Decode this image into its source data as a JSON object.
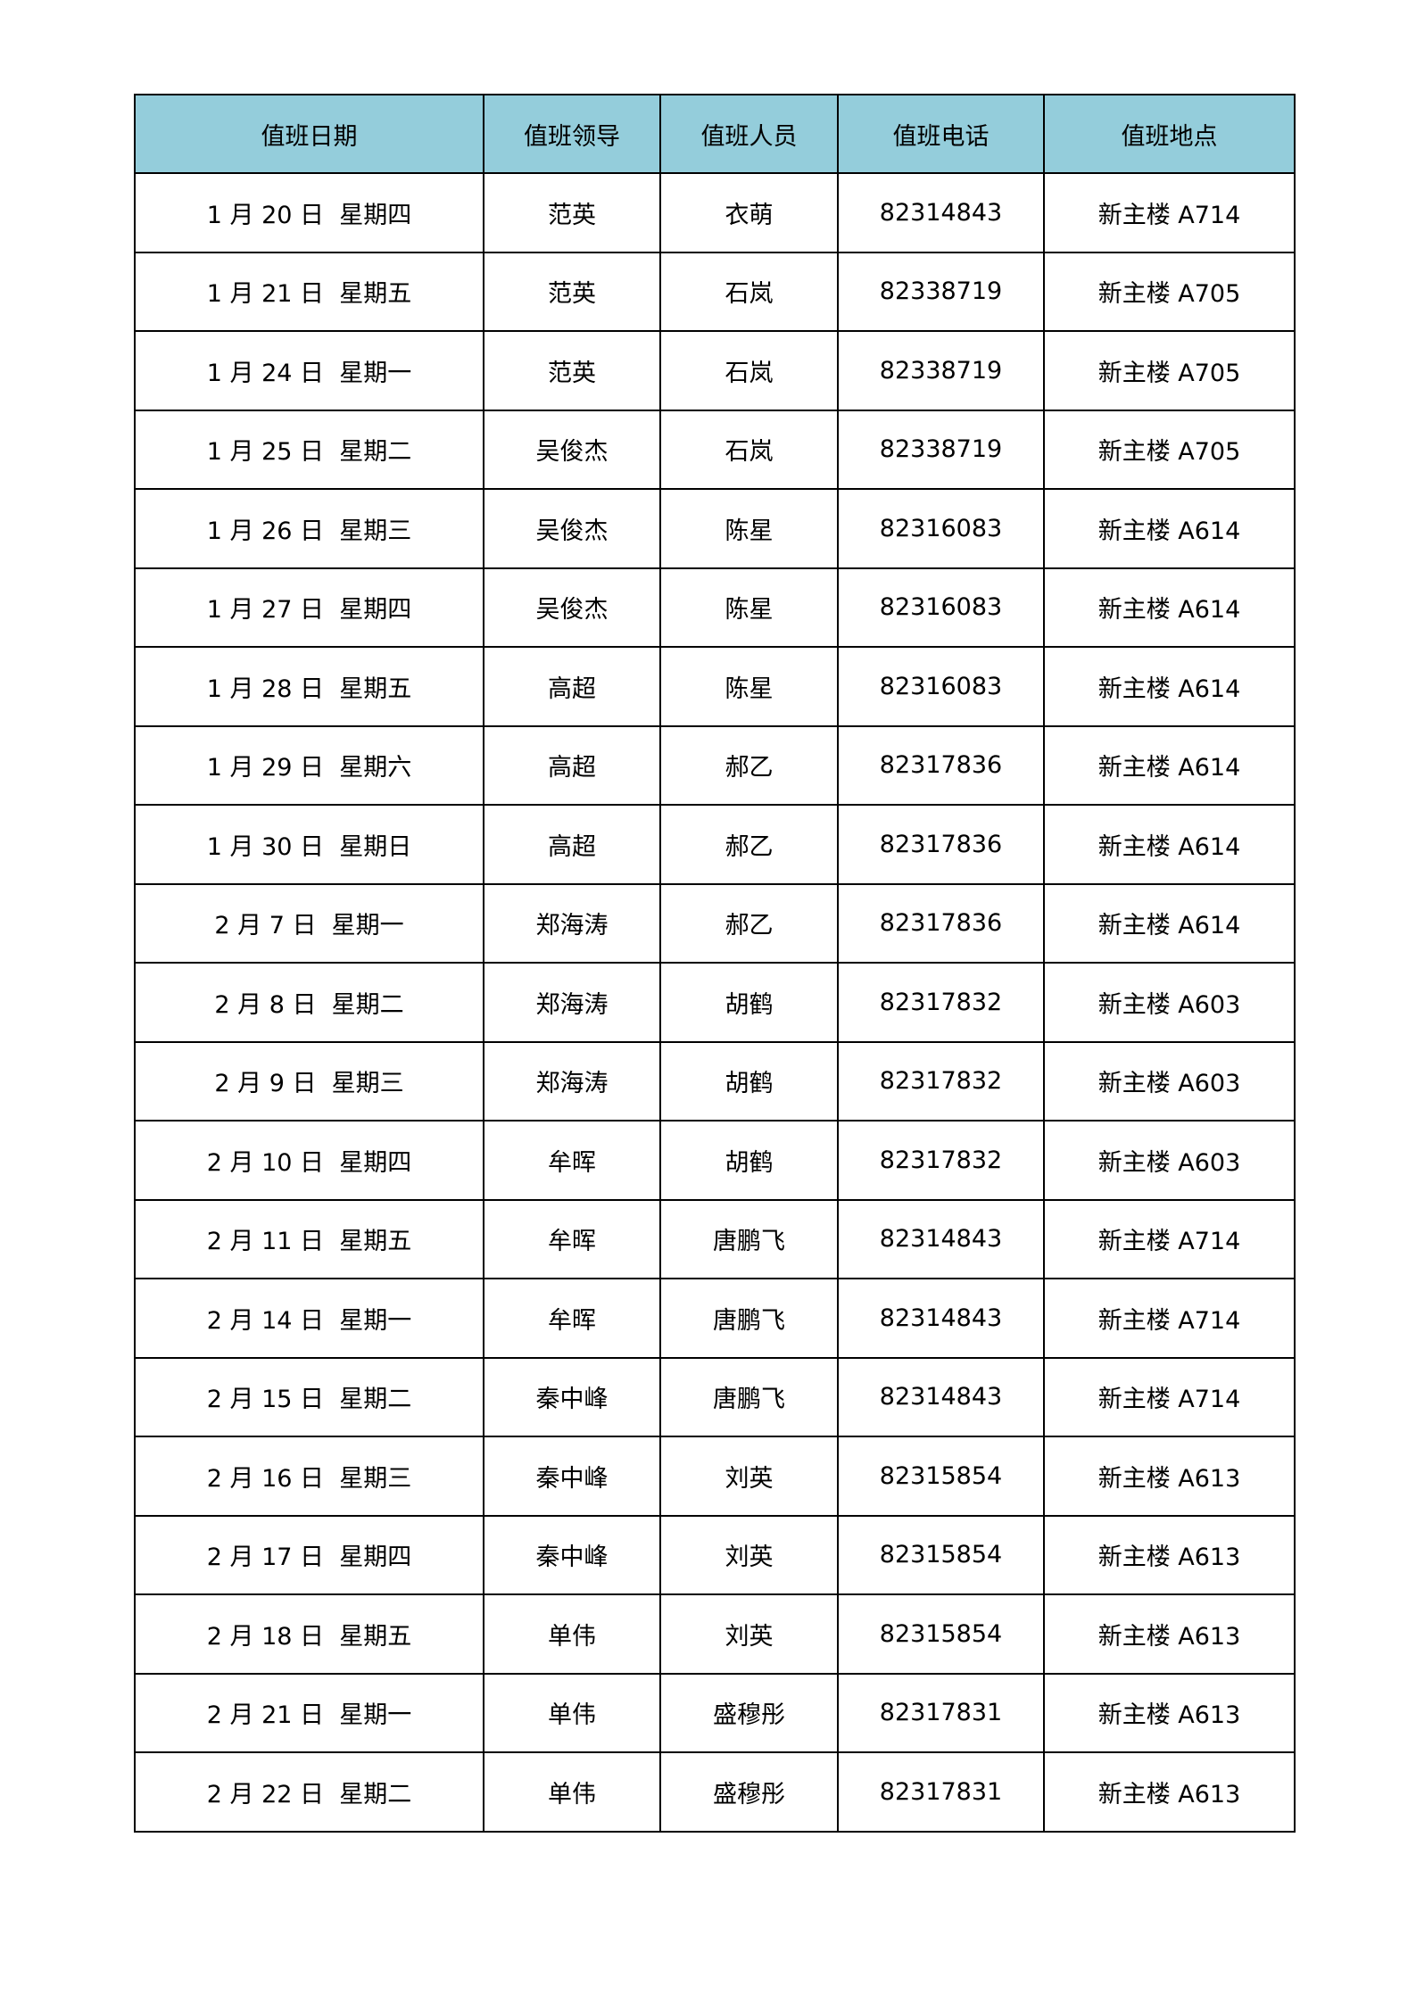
{
  "table": {
    "header_color": "#94CDDB",
    "headers": [
      "值班日期",
      "值班领导",
      "值班人员",
      "值班电话",
      "值班地点"
    ],
    "rows": [
      [
        "1 月 20 日  星期四",
        "范英",
        "衣萌",
        "82314843",
        "新主楼 A714"
      ],
      [
        "1 月 21 日  星期五",
        "范英",
        "石岚",
        "82338719",
        "新主楼 A705"
      ],
      [
        "1 月 24 日  星期一",
        "范英",
        "石岚",
        "82338719",
        "新主楼 A705"
      ],
      [
        "1 月 25 日  星期二",
        "吴俊杰",
        "石岚",
        "82338719",
        "新主楼 A705"
      ],
      [
        "1 月 26 日  星期三",
        "吴俊杰",
        "陈星",
        "82316083",
        "新主楼 A614"
      ],
      [
        "1 月 27 日  星期四",
        "吴俊杰",
        "陈星",
        "82316083",
        "新主楼 A614"
      ],
      [
        "1 月 28 日  星期五",
        "高超",
        "陈星",
        "82316083",
        "新主楼 A614"
      ],
      [
        "1 月 29 日  星期六",
        "高超",
        "郝乙",
        "82317836",
        "新主楼 A614"
      ],
      [
        "1 月 30 日  星期日",
        "高超",
        "郝乙",
        "82317836",
        "新主楼 A614"
      ],
      [
        "2 月 7 日  星期一",
        "郑海涛",
        "郝乙",
        "82317836",
        "新主楼 A614"
      ],
      [
        "2 月 8 日  星期二",
        "郑海涛",
        "胡鹤",
        "82317832",
        "新主楼 A603"
      ],
      [
        "2 月 9 日  星期三",
        "郑海涛",
        "胡鹤",
        "82317832",
        "新主楼 A603"
      ],
      [
        "2 月 10 日  星期四",
        "牟晖",
        "胡鹤",
        "82317832",
        "新主楼 A603"
      ],
      [
        "2 月 11 日  星期五",
        "牟晖",
        "唐鹏飞",
        "82314843",
        "新主楼 A714"
      ],
      [
        "2 月 14 日  星期一",
        "牟晖",
        "唐鹏飞",
        "82314843",
        "新主楼 A714"
      ],
      [
        "2 月 15 日  星期二",
        "秦中峰",
        "唐鹏飞",
        "82314843",
        "新主楼 A714"
      ],
      [
        "2 月 16 日  星期三",
        "秦中峰",
        "刘英",
        "82315854",
        "新主楼 A613"
      ],
      [
        "2 月 17 日  星期四",
        "秦中峰",
        "刘英",
        "82315854",
        "新主楼 A613"
      ],
      [
        "2 月 18 日  星期五",
        "单伟",
        "刘英",
        "82315854",
        "新主楼 A613"
      ],
      [
        "2 月 21 日  星期一",
        "单伟",
        "盛穆彤",
        "82317831",
        "新主楼 A613"
      ],
      [
        "2 月 22 日  星期二",
        "单伟",
        "盛穆彤",
        "82317831",
        "新主楼 A613"
      ]
    ]
  }
}
